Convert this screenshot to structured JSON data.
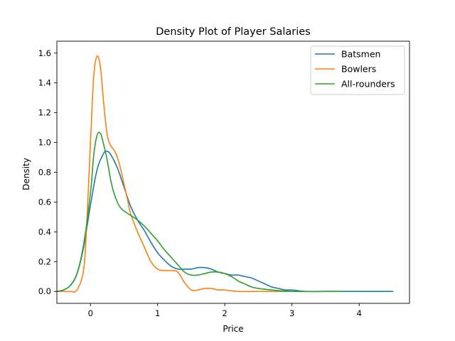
{
  "chart_data": {
    "type": "line",
    "title": "Density Plot of Player Salaries",
    "xlabel": "Price",
    "ylabel": "Density",
    "xlim": [
      -0.5,
      4.75
    ],
    "ylim": [
      -0.08,
      1.68
    ],
    "xticks": [
      0,
      1,
      2,
      3,
      4
    ],
    "yticks": [
      0.0,
      0.2,
      0.4,
      0.6,
      0.8,
      1.0,
      1.2,
      1.4,
      1.6
    ],
    "xtick_labels": [
      "0",
      "1",
      "2",
      "3",
      "4"
    ],
    "ytick_labels": [
      "0.0",
      "0.2",
      "0.4",
      "0.6",
      "0.8",
      "1.0",
      "1.2",
      "1.4",
      "1.6"
    ],
    "grid": false,
    "legend_position": "top-right",
    "series": [
      {
        "name": "Batsmen",
        "color": "#1f77b4",
        "x": [
          -0.5,
          -0.4,
          -0.3,
          -0.2,
          -0.1,
          0.0,
          0.1,
          0.2,
          0.25,
          0.3,
          0.4,
          0.5,
          0.6,
          0.7,
          0.8,
          0.9,
          1.0,
          1.1,
          1.2,
          1.3,
          1.4,
          1.5,
          1.6,
          1.7,
          1.8,
          1.9,
          2.0,
          2.1,
          2.2,
          2.3,
          2.4,
          2.5,
          2.6,
          2.7,
          2.8,
          2.9,
          3.0,
          3.2,
          3.5,
          4.0,
          4.5
        ],
        "y": [
          0.0,
          0.01,
          0.04,
          0.12,
          0.3,
          0.58,
          0.82,
          0.93,
          0.94,
          0.92,
          0.83,
          0.7,
          0.57,
          0.48,
          0.41,
          0.33,
          0.26,
          0.21,
          0.17,
          0.15,
          0.15,
          0.15,
          0.16,
          0.16,
          0.15,
          0.13,
          0.12,
          0.11,
          0.11,
          0.1,
          0.09,
          0.07,
          0.05,
          0.03,
          0.02,
          0.01,
          0.01,
          0.0,
          0.0,
          0.0,
          0.0
        ]
      },
      {
        "name": "Bowlers",
        "color": "#ff7f0e",
        "x": [
          -0.5,
          -0.4,
          -0.3,
          -0.2,
          -0.1,
          -0.05,
          0.0,
          0.05,
          0.1,
          0.15,
          0.2,
          0.25,
          0.3,
          0.35,
          0.4,
          0.45,
          0.5,
          0.55,
          0.6,
          0.7,
          0.8,
          0.9,
          1.0,
          1.1,
          1.2,
          1.3,
          1.4,
          1.5,
          1.6,
          1.7,
          1.8,
          1.9,
          2.0,
          2.2,
          2.5,
          3.0
        ],
        "y": [
          0.0,
          0.0,
          0.0,
          0.01,
          0.15,
          0.5,
          1.0,
          1.45,
          1.58,
          1.5,
          1.25,
          1.05,
          0.98,
          0.95,
          0.9,
          0.82,
          0.72,
          0.62,
          0.52,
          0.4,
          0.3,
          0.2,
          0.15,
          0.14,
          0.14,
          0.13,
          0.06,
          0.01,
          0.01,
          0.02,
          0.02,
          0.01,
          0.01,
          0.0,
          0.0,
          0.0
        ]
      },
      {
        "name": "All-rounders",
        "color": "#2ca02c",
        "x": [
          -0.5,
          -0.4,
          -0.3,
          -0.2,
          -0.1,
          0.0,
          0.05,
          0.1,
          0.15,
          0.2,
          0.25,
          0.3,
          0.35,
          0.4,
          0.45,
          0.5,
          0.6,
          0.7,
          0.8,
          0.9,
          1.0,
          1.1,
          1.2,
          1.3,
          1.4,
          1.5,
          1.6,
          1.7,
          1.8,
          1.9,
          2.0,
          2.1,
          2.2,
          2.3,
          2.4,
          2.5,
          2.7,
          3.0,
          3.5,
          3.75
        ],
        "y": [
          0.0,
          0.01,
          0.04,
          0.12,
          0.32,
          0.66,
          0.92,
          1.05,
          1.06,
          0.98,
          0.88,
          0.75,
          0.66,
          0.6,
          0.56,
          0.54,
          0.51,
          0.48,
          0.44,
          0.39,
          0.34,
          0.28,
          0.23,
          0.18,
          0.13,
          0.11,
          0.11,
          0.12,
          0.13,
          0.13,
          0.12,
          0.1,
          0.07,
          0.05,
          0.03,
          0.02,
          0.01,
          0.0,
          0.0,
          0.0
        ]
      }
    ]
  }
}
